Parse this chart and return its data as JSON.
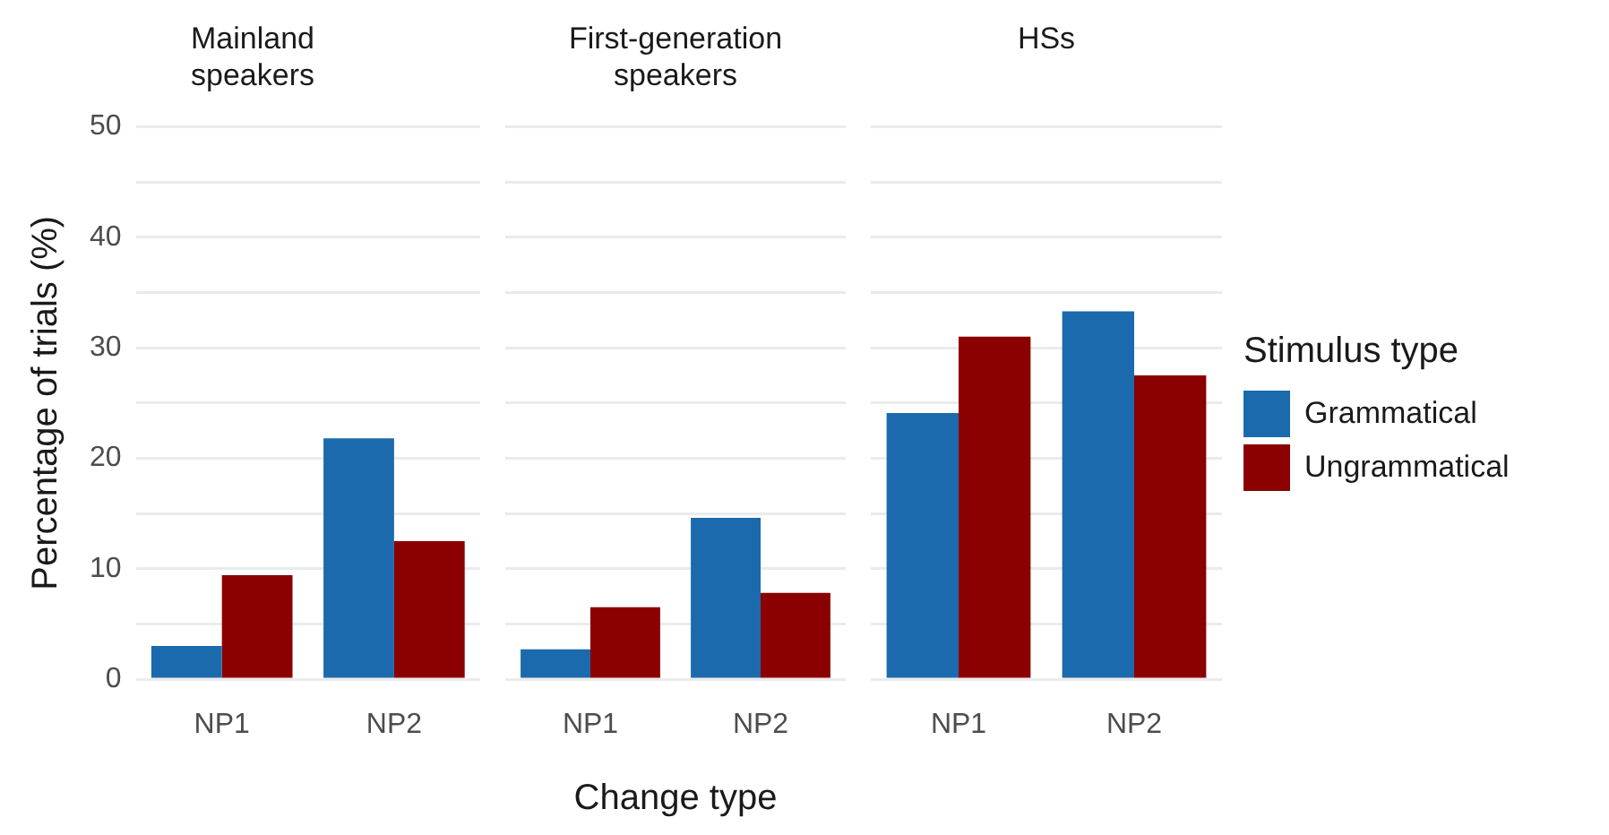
{
  "chart_data": [
    {
      "type": "bar",
      "title": "Mainland speakers",
      "ylabel": "Percentage of trials (%)",
      "categories": [
        "NP1",
        "NP2"
      ],
      "series": [
        {
          "color": "#1b6aad",
          "values": [
            3.0,
            21.8
          ]
        },
        {
          "color": "#8b0000",
          "values": [
            9.4,
            12.5
          ]
        }
      ],
      "ylim": [
        0,
        50
      ],
      "yticks": [
        0,
        {
          "value": 5,
          "label": null
        },
        10,
        {
          "value": 15,
          "label": null
        },
        20,
        {
          "value": 25,
          "label": null
        },
        30,
        {
          "value": 35,
          "label": null
        },
        40,
        {
          "value": 45,
          "label": null
        },
        50
      ],
      "grid": "y"
    },
    {
      "type": "bar",
      "title": "First-generation speakers",
      "xlabel": "Change type",
      "categories": [
        "NP1",
        "NP2"
      ],
      "series": [
        {
          "color": "#1b6aad",
          "values": [
            2.7,
            14.6
          ]
        },
        {
          "color": "#8b0000",
          "values": [
            6.5,
            7.8
          ]
        }
      ],
      "ylim": [
        0,
        50
      ],
      "yticks": [
        0,
        {
          "value": 5,
          "label": null
        },
        10,
        {
          "value": 15,
          "label": null
        },
        20,
        {
          "value": 25,
          "label": null
        },
        30,
        {
          "value": 35,
          "label": null
        },
        40,
        {
          "value": 45,
          "label": null
        },
        50
      ],
      "grid": "y",
      "tick_labels": "x"
    },
    {
      "type": "bar",
      "title": "HSs",
      "legend_title": "Stimulus type",
      "categories": [
        "NP1",
        "NP2"
      ],
      "series": [
        {
          "name": "Grammatical",
          "color": "#1b6aad",
          "values": [
            24.1,
            33.3
          ]
        },
        {
          "name": "Ungrammatical",
          "color": "#8b0000",
          "values": [
            31.0,
            27.5
          ]
        }
      ],
      "ylim": [
        0,
        50
      ],
      "yticks": [
        0,
        {
          "value": 5,
          "label": null
        },
        10,
        {
          "value": 15,
          "label": null
        },
        20,
        {
          "value": 25,
          "label": null
        },
        30,
        {
          "value": 35,
          "label": null
        },
        40,
        {
          "value": 45,
          "label": null
        },
        50
      ],
      "grid": "y",
      "tick_labels": "x",
      "legend": "right"
    }
  ]
}
